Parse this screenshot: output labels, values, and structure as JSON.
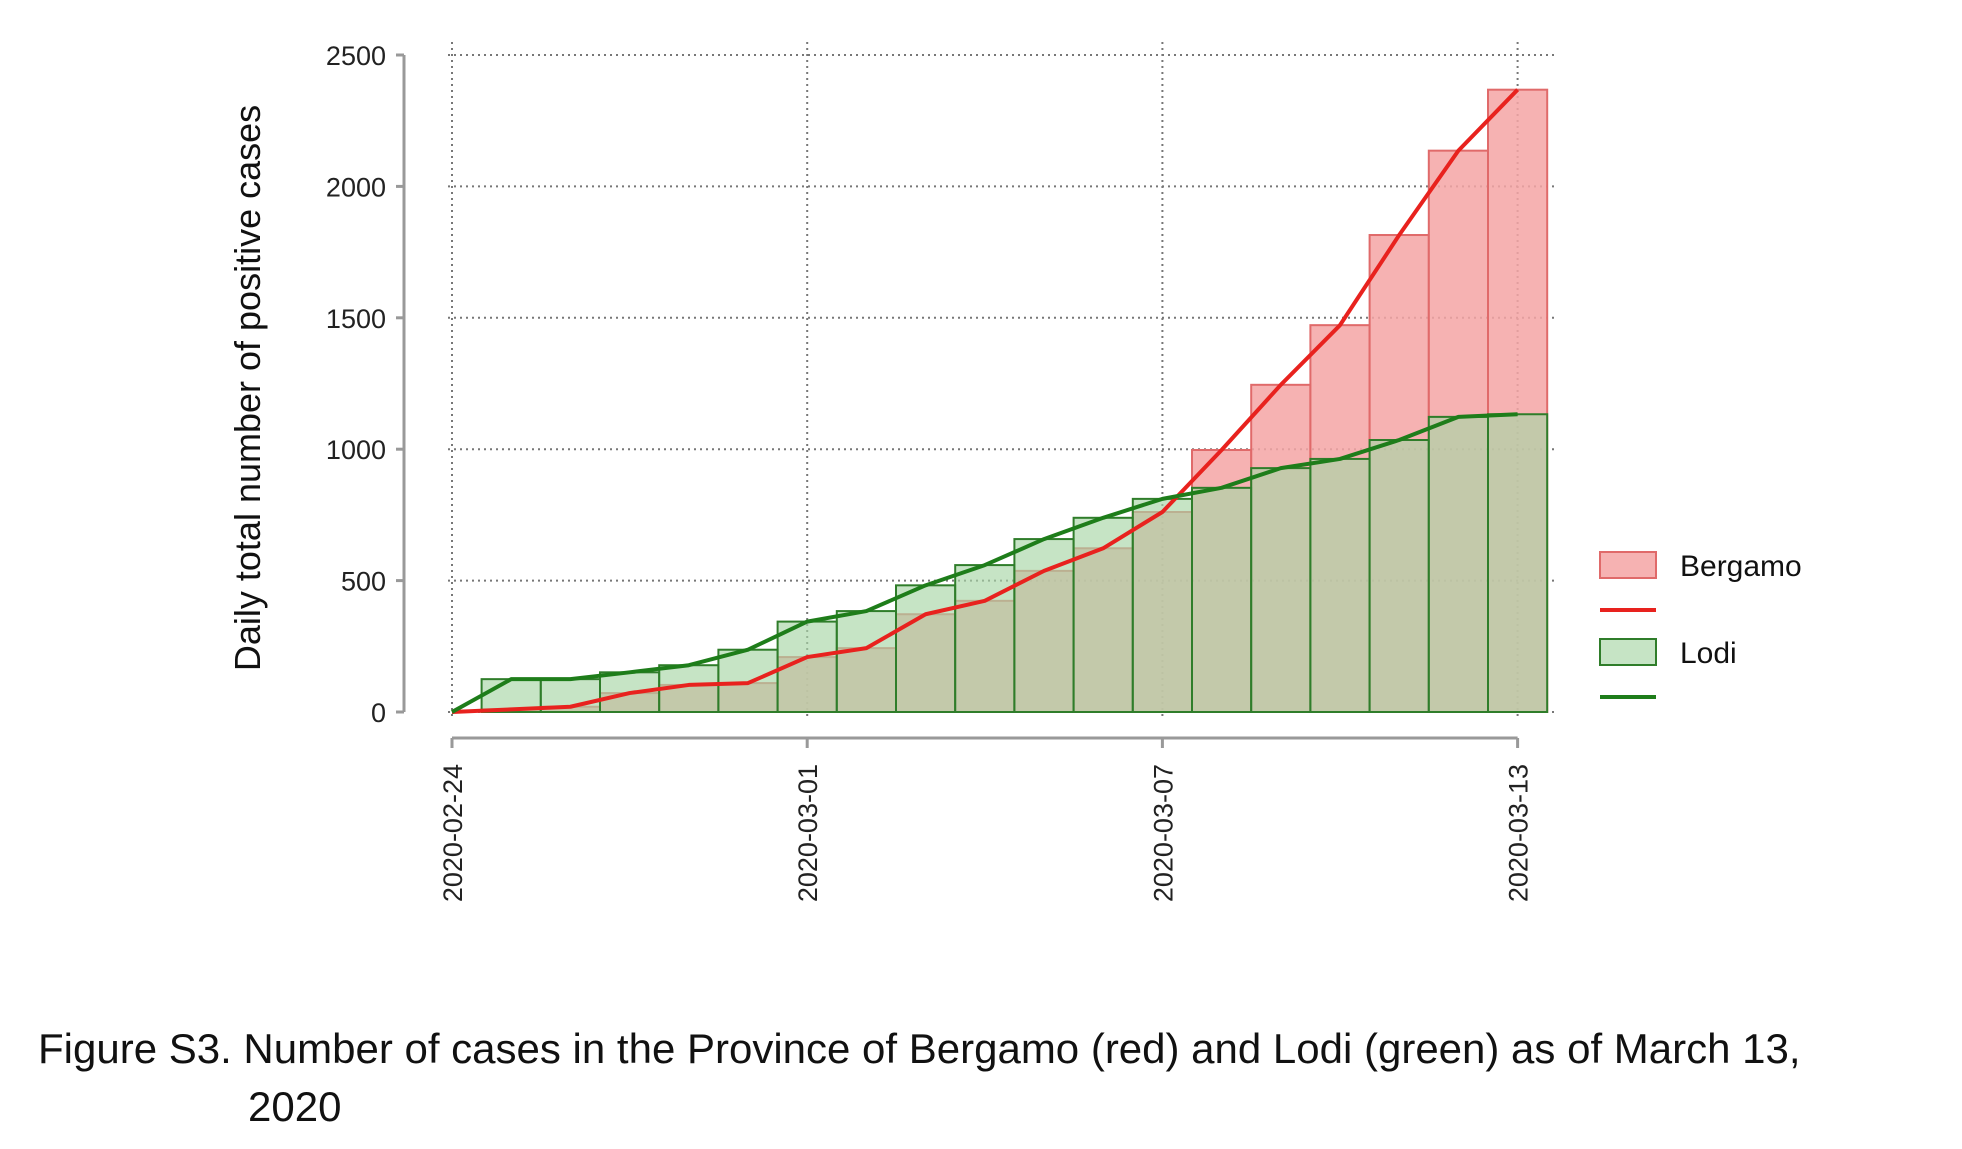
{
  "chart_data": {
    "type": "bar",
    "ylabel": "Daily total number of positive cases",
    "ylim": [
      0,
      2500
    ],
    "yticks": [
      0,
      500,
      1000,
      1500,
      2000,
      2500
    ],
    "dates": [
      "2020-02-24",
      "2020-02-25",
      "2020-02-26",
      "2020-02-27",
      "2020-02-28",
      "2020-02-29",
      "2020-03-01",
      "2020-03-02",
      "2020-03-03",
      "2020-03-04",
      "2020-03-05",
      "2020-03-06",
      "2020-03-07",
      "2020-03-08",
      "2020-03-09",
      "2020-03-10",
      "2020-03-11",
      "2020-03-12",
      "2020-03-13"
    ],
    "xticks": [
      "2020-02-24",
      "2020-03-01",
      "2020-03-07",
      "2020-03-13"
    ],
    "grid": true,
    "legend_position": "right",
    "series": [
      {
        "name": "Bergamo",
        "bar_color": "#f4a5a5",
        "line_color": "#e8221e",
        "values": [
          0,
          10,
          20,
          72,
          103,
          110,
          209,
          243,
          372,
          423,
          537,
          623,
          761,
          997,
          1245,
          1472,
          1815,
          2136,
          2368
        ]
      },
      {
        "name": "Lodi",
        "bar_color": "#a8d6a6",
        "line_color": "#1e7d1a",
        "values": [
          0,
          125,
          125,
          151,
          178,
          237,
          344,
          384,
          482,
          559,
          658,
          739,
          811,
          853,
          928,
          963,
          1035,
          1123,
          1133
        ]
      }
    ]
  },
  "caption": {
    "line1": "Figure S3. Number of cases in the Province of Bergamo (red) and Lodi (green) as of March 13,",
    "line2": "2020"
  }
}
